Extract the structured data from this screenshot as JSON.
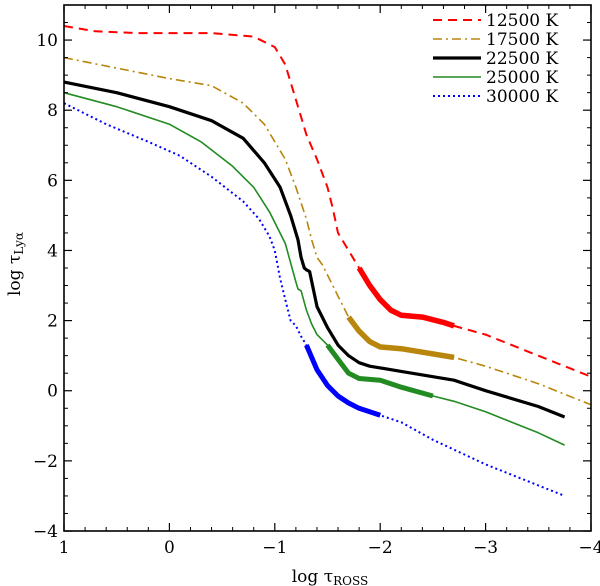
{
  "chart_data": {
    "type": "line",
    "xlabel": "log τ",
    "xlabel_sub": "ROSS",
    "ylabel": "log τ",
    "ylabel_sub": "Lyα",
    "xlim": [
      1,
      -4
    ],
    "ylim": [
      -4,
      11
    ],
    "x_ticks": [
      1,
      0,
      -1,
      -2,
      -3,
      -4
    ],
    "x_tick_labels": [
      "1",
      "0",
      "−1",
      "−2",
      "−3",
      "−4"
    ],
    "y_ticks": [
      -4,
      -2,
      0,
      2,
      4,
      6,
      8,
      10
    ],
    "y_tick_labels": [
      "−4",
      "−2",
      "0",
      "2",
      "4",
      "6",
      "8",
      "10"
    ],
    "grid": false,
    "legend_position": "top-right",
    "series": [
      {
        "name": "12500 K",
        "color": "#ff0000",
        "style": "dashed",
        "x": [
          1,
          0.7,
          0.3,
          0,
          -0.4,
          -0.8,
          -1.0,
          -1.1,
          -1.2,
          -1.3,
          -1.4,
          -1.5,
          -1.55,
          -1.6,
          -1.7,
          -1.8,
          -1.9,
          -2.0,
          -2.1,
          -2.2,
          -2.4,
          -2.6,
          -2.7,
          -3.0,
          -3.5,
          -4.0
        ],
        "y": [
          10.4,
          10.25,
          10.2,
          10.2,
          10.2,
          10.1,
          9.8,
          9.3,
          8.3,
          7.3,
          6.6,
          5.8,
          5.2,
          4.5,
          4.0,
          3.5,
          3.0,
          2.6,
          2.3,
          2.15,
          2.1,
          1.95,
          1.85,
          1.6,
          1.0,
          0.4
        ],
        "bold_range": [
          -1.8,
          -2.7
        ]
      },
      {
        "name": "17500 K",
        "color": "#b8860b",
        "style": "dashdot",
        "x": [
          1,
          0.5,
          0,
          -0.4,
          -0.7,
          -0.9,
          -1.1,
          -1.2,
          -1.3,
          -1.35,
          -1.4,
          -1.45,
          -1.5,
          -1.6,
          -1.7,
          -1.8,
          -1.9,
          -2.0,
          -2.2,
          -2.4,
          -2.7,
          -3.0,
          -3.5,
          -4.0
        ],
        "y": [
          9.5,
          9.2,
          8.9,
          8.7,
          8.2,
          7.6,
          6.6,
          5.8,
          4.9,
          4.3,
          3.8,
          3.6,
          3.3,
          2.7,
          2.1,
          1.7,
          1.4,
          1.25,
          1.2,
          1.1,
          0.95,
          0.7,
          0.2,
          -0.4
        ],
        "bold_range": [
          -1.7,
          -2.7
        ]
      },
      {
        "name": "22500 K",
        "color": "#000000",
        "style": "solid-thick",
        "x": [
          1,
          0.5,
          0,
          -0.4,
          -0.7,
          -0.9,
          -1.05,
          -1.15,
          -1.22,
          -1.25,
          -1.28,
          -1.3,
          -1.33,
          -1.4,
          -1.5,
          -1.6,
          -1.7,
          -1.8,
          -1.9,
          -2.0,
          -2.2,
          -2.5,
          -2.7,
          -3.0,
          -3.5,
          -3.75
        ],
        "y": [
          8.8,
          8.5,
          8.1,
          7.7,
          7.2,
          6.5,
          5.8,
          5.0,
          4.3,
          3.8,
          3.5,
          3.45,
          3.4,
          2.4,
          1.8,
          1.3,
          1.0,
          0.8,
          0.7,
          0.65,
          0.55,
          0.4,
          0.3,
          0.0,
          -0.45,
          -0.75
        ],
        "bold_range": [
          1,
          -3.75
        ]
      },
      {
        "name": "25000 K",
        "color": "#228b22",
        "style": "solid",
        "x": [
          1,
          0.5,
          0,
          -0.3,
          -0.6,
          -0.8,
          -0.95,
          -1.1,
          -1.2,
          -1.22,
          -1.25,
          -1.3,
          -1.35,
          -1.4,
          -1.5,
          -1.6,
          -1.7,
          -1.8,
          -2.0,
          -2.2,
          -2.5,
          -2.7,
          -3.0,
          -3.5,
          -3.75
        ],
        "y": [
          8.5,
          8.1,
          7.6,
          7.1,
          6.4,
          5.8,
          5.1,
          4.2,
          3.1,
          2.9,
          2.85,
          2.3,
          1.9,
          1.6,
          1.3,
          0.9,
          0.5,
          0.35,
          0.3,
          0.1,
          -0.15,
          -0.3,
          -0.6,
          -1.2,
          -1.55
        ],
        "bold_range": [
          -1.5,
          -2.5
        ]
      },
      {
        "name": "30000 K",
        "color": "#0000ff",
        "style": "dotted",
        "x": [
          1,
          0.6,
          0.2,
          -0.1,
          -0.4,
          -0.7,
          -0.85,
          -0.95,
          -1.0,
          -1.05,
          -1.1,
          -1.15,
          -1.2,
          -1.25,
          -1.3,
          -1.4,
          -1.5,
          -1.6,
          -1.7,
          -1.8,
          -1.9,
          -2.0,
          -2.2,
          -2.5,
          -3.0,
          -3.5,
          -3.75
        ],
        "y": [
          8.2,
          7.6,
          7.1,
          6.7,
          6.1,
          5.4,
          4.9,
          4.4,
          4.0,
          3.2,
          2.6,
          2.0,
          1.85,
          1.55,
          1.3,
          0.6,
          0.15,
          -0.15,
          -0.35,
          -0.5,
          -0.6,
          -0.7,
          -0.9,
          -1.4,
          -2.1,
          -2.7,
          -3.0
        ],
        "bold_range": [
          -1.3,
          -2.0
        ]
      }
    ]
  }
}
